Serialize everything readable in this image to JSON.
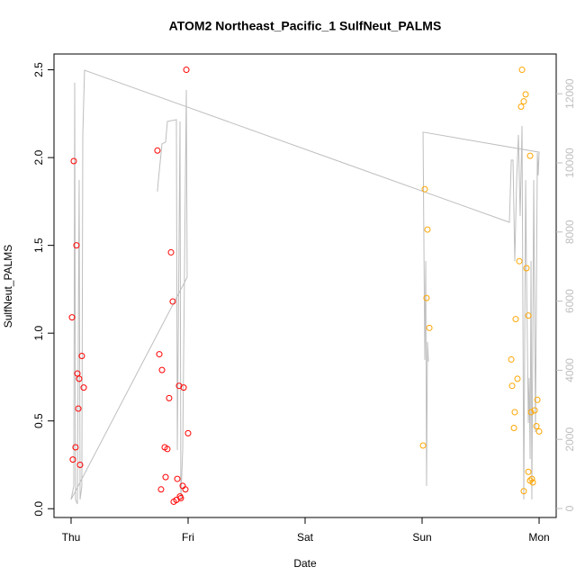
{
  "chart_data": {
    "type": "scatter",
    "title": "ATOM2 Northeast_Pacific_1 SulfNeut_PALMS",
    "xlabel": "Date",
    "ylabel": "SulfNeut_PALMS",
    "xlim": [
      -0.146,
      4.146
    ],
    "xticks": [
      {
        "value": 0,
        "label": "Thu"
      },
      {
        "value": 1,
        "label": "Fri"
      },
      {
        "value": 2,
        "label": "Sat"
      },
      {
        "value": 3,
        "label": "Sun"
      },
      {
        "value": 4,
        "label": "Mon"
      }
    ],
    "ylim": [
      -0.05,
      2.59
    ],
    "yticks": [
      {
        "value": 0,
        "label": "0.0"
      },
      0.5,
      {
        "value": 1,
        "label": "1.0"
      },
      1.5,
      {
        "value": 2,
        "label": "2.0"
      },
      2.5
    ],
    "y2lim": [
      -260,
      13150
    ],
    "y2ticks": [
      0,
      2000,
      4000,
      6000,
      8000,
      10000,
      12000
    ],
    "y2color": "#bebebe",
    "series": [
      {
        "color": "#ff0000",
        "x": [
          0.008,
          0.023,
          0.015,
          0.046,
          0.038,
          0.054,
          0.069,
          0.062,
          0.092,
          0.077,
          0.108,
          0.738,
          0.754,
          0.777,
          0.769,
          0.8,
          0.823,
          0.808,
          0.838,
          0.854,
          0.869,
          0.877,
          0.9,
          0.908,
          0.923,
          0.931,
          0.938,
          0.954,
          0.962,
          0.977,
          0.985,
          1.0
        ],
        "values": [
          1.09,
          1.98,
          0.28,
          1.5,
          0.35,
          0.77,
          0.74,
          0.57,
          0.87,
          0.25,
          0.69,
          2.04,
          0.88,
          0.79,
          0.11,
          0.35,
          0.34,
          0.18,
          0.63,
          1.46,
          1.18,
          0.04,
          0.05,
          0.17,
          0.7,
          0.07,
          0.06,
          0.13,
          0.69,
          0.11,
          2.5,
          0.43
        ]
      },
      {
        "color": "#ffa500",
        "x": [
          3.008,
          3.023,
          3.046,
          3.038,
          3.062,
          3.762,
          3.769,
          3.785,
          3.792,
          3.8,
          3.815,
          3.831,
          3.846,
          3.854,
          3.869,
          3.885,
          3.869,
          3.892,
          3.908,
          3.908,
          3.923,
          3.923,
          3.938,
          3.946,
          3.931,
          3.962,
          3.977,
          3.985,
          4.0
        ],
        "values": [
          0.36,
          1.82,
          1.59,
          1.2,
          1.03,
          0.85,
          0.7,
          0.46,
          0.55,
          1.08,
          0.74,
          1.41,
          2.29,
          2.5,
          2.32,
          2.36,
          0.1,
          1.37,
          1.1,
          0.21,
          2.01,
          0.16,
          0.17,
          0.15,
          0.55,
          0.56,
          0.47,
          0.62,
          0.44
        ]
      },
      {
        "color": "#bebebe",
        "type": "line",
        "axis": "y2",
        "x": [
          0.738,
          0.746,
          0.777,
          0.808,
          0.823,
          0.854,
          0.9,
          0.908,
          0.931,
          0.938,
          0.954,
          0.977,
          0.985,
          0.992,
          0,
          0.023,
          0.031,
          0.038,
          0.054,
          0.069,
          0.077,
          0.092,
          0.1,
          0.115,
          3.746,
          3.762,
          3.777,
          3.792,
          3.808,
          3.823,
          3.838,
          3.854,
          3.869,
          3.885,
          3.892,
          3.908,
          3.915,
          3.923,
          3.931,
          3.938,
          3.954,
          3.969,
          3.985,
          3.992,
          4.0,
          3.008,
          3.023,
          3.031,
          3.038,
          3.046,
          3.054
        ],
        "values": [
          9170,
          9500,
          10550,
          10600,
          11200,
          11220,
          11250,
          1690,
          11200,
          260,
          1690,
          9500,
          12110,
          6690,
          260,
          650,
          12320,
          260,
          130,
          9500,
          260,
          650,
          10810,
          12680,
          8280,
          10080,
          10080,
          7160,
          9500,
          10810,
          8460,
          11070,
          260,
          9500,
          6900,
          2470,
          3780,
          1430,
          7160,
          260,
          9500,
          2210,
          10290,
          9640,
          10310,
          10890,
          4300,
          7160,
          650,
          4820,
          4250
        ]
      }
    ]
  }
}
